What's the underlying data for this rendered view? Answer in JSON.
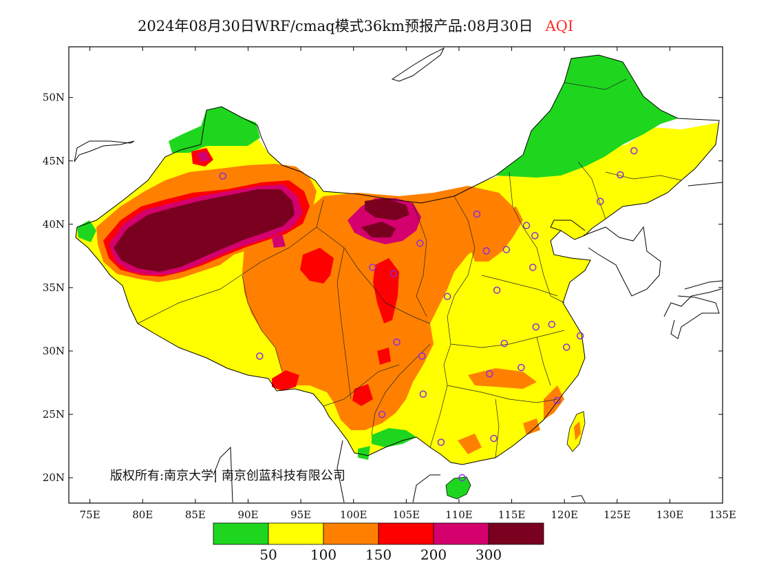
{
  "header": {
    "title_main": "2024年08月30日WRF/cmaq模式36km预报产品:08月30日",
    "title_variable": "AQI"
  },
  "map": {
    "copyright": "版权所有:南京大学| 南京创蓝科技有限公司",
    "lon_ticks": [
      "75E",
      "80E",
      "85E",
      "90E",
      "95E",
      "100E",
      "105E",
      "110E",
      "115E",
      "120E",
      "125E",
      "130E",
      "135E"
    ],
    "lat_ticks": [
      "50N",
      "45N",
      "40N",
      "35N",
      "30N",
      "25N",
      "20N"
    ],
    "lon_values": [
      75,
      80,
      85,
      90,
      95,
      100,
      105,
      110,
      115,
      120,
      125,
      130,
      135
    ],
    "lat_values": [
      50,
      45,
      40,
      35,
      30,
      25,
      20
    ],
    "lon_range": [
      73,
      135
    ],
    "lat_range": [
      18,
      54
    ]
  },
  "legend": {
    "colors": [
      "#1ed61e",
      "#ffff00",
      "#ff8000",
      "#ff0000",
      "#d4006e",
      "#7a0020"
    ],
    "labels": [
      "50",
      "100",
      "150",
      "200",
      "300"
    ]
  },
  "colors": {
    "good": "#1ed61e",
    "moderate": "#ffff00",
    "sensitive": "#ff8000",
    "unhealthy": "#ff0000",
    "very_unhealthy": "#d4006e",
    "hazardous": "#7a0020",
    "station_marker": "#8a2be2"
  },
  "stations": [
    {
      "lon": 87.6,
      "lat": 43.8
    },
    {
      "lon": 91.1,
      "lat": 29.6
    },
    {
      "lon": 101.8,
      "lat": 36.6
    },
    {
      "lon": 103.8,
      "lat": 36.1
    },
    {
      "lon": 106.3,
      "lat": 38.5
    },
    {
      "lon": 108.9,
      "lat": 34.3
    },
    {
      "lon": 111.7,
      "lat": 40.8
    },
    {
      "lon": 112.6,
      "lat": 37.9
    },
    {
      "lon": 114.5,
      "lat": 38.0
    },
    {
      "lon": 116.4,
      "lat": 39.9
    },
    {
      "lon": 117.2,
      "lat": 39.1
    },
    {
      "lon": 117.0,
      "lat": 36.6
    },
    {
      "lon": 113.6,
      "lat": 34.8
    },
    {
      "lon": 117.3,
      "lat": 31.9
    },
    {
      "lon": 118.8,
      "lat": 32.1
    },
    {
      "lon": 120.2,
      "lat": 30.3
    },
    {
      "lon": 121.5,
      "lat": 31.2
    },
    {
      "lon": 114.3,
      "lat": 30.6
    },
    {
      "lon": 112.9,
      "lat": 28.2
    },
    {
      "lon": 115.9,
      "lat": 28.7
    },
    {
      "lon": 119.3,
      "lat": 26.1
    },
    {
      "lon": 113.3,
      "lat": 23.1
    },
    {
      "lon": 108.3,
      "lat": 22.8
    },
    {
      "lon": 110.3,
      "lat": 20.0
    },
    {
      "lon": 106.6,
      "lat": 26.6
    },
    {
      "lon": 102.7,
      "lat": 25.0
    },
    {
      "lon": 104.1,
      "lat": 30.7
    },
    {
      "lon": 106.5,
      "lat": 29.6
    },
    {
      "lon": 123.4,
      "lat": 41.8
    },
    {
      "lon": 125.3,
      "lat": 43.9
    },
    {
      "lon": 126.6,
      "lat": 45.8
    }
  ]
}
